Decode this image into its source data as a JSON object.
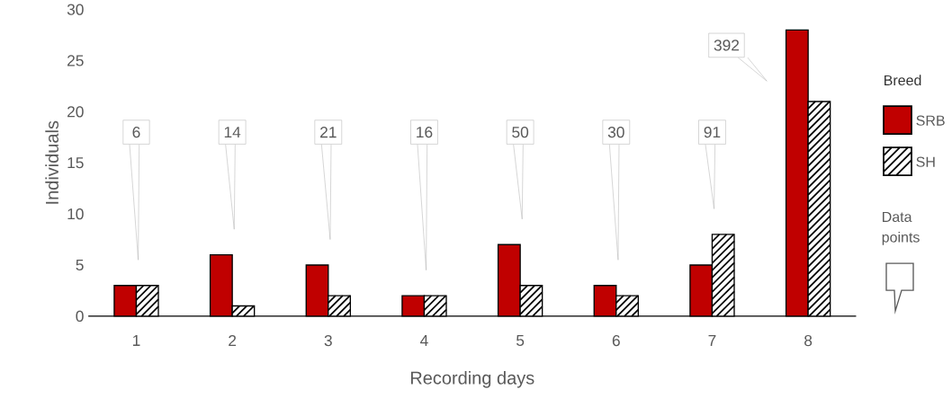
{
  "chart_data": {
    "type": "bar",
    "xlabel": "Recording days",
    "ylabel": "Individuals",
    "legend_title": "Breed",
    "legend": "right",
    "categories": [
      "1",
      "2",
      "3",
      "4",
      "5",
      "6",
      "7",
      "8"
    ],
    "series": [
      {
        "name": "SRB",
        "color": "#c00000",
        "values": [
          3,
          6,
          5,
          2,
          7,
          3,
          5,
          28
        ]
      },
      {
        "name": "SH",
        "color": "#ffffff",
        "values": [
          3,
          1,
          2,
          2,
          3,
          2,
          8,
          21
        ]
      }
    ],
    "ylim": [
      0,
      30
    ],
    "yticks": [
      0,
      5,
      10,
      15,
      20,
      25,
      30
    ],
    "annotations": [
      "6",
      "14",
      "21",
      "16",
      "50",
      "30",
      "91",
      "392",
      "Data points"
    ]
  }
}
